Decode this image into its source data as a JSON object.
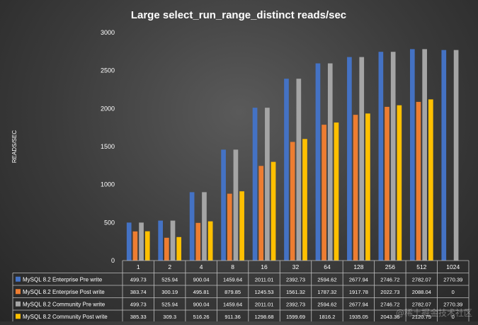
{
  "chart_data": {
    "type": "bar",
    "title": "Large select_run_range_distinct   reads/sec",
    "ylabel": "READS/SEC",
    "xlabel": "",
    "ylim": [
      0,
      3000
    ],
    "yticks": [
      0,
      500,
      1000,
      1500,
      2000,
      2500,
      3000
    ],
    "grid": false,
    "legend": "table-below",
    "categories": [
      "1",
      "2",
      "4",
      "8",
      "16",
      "32",
      "64",
      "128",
      "256",
      "512",
      "1024"
    ],
    "series": [
      {
        "name": "MySQL 8.2 Enterprise Pre write",
        "color": "#4472C4",
        "values": [
          499.73,
          525.94,
          900.04,
          1459.64,
          2011.01,
          2392.73,
          2594.62,
          2677.94,
          2746.72,
          2782.07,
          2770.39
        ],
        "labels": [
          "499.73",
          "525.94",
          "900.04",
          "1459.64",
          "2011.01",
          "2392.73",
          "2594.62",
          "2677.94",
          "2746.72",
          "2782.07",
          "2770.39"
        ]
      },
      {
        "name": "MySQL 8.2 Enterprise Post write",
        "color": "#ED7D31",
        "values": [
          383.74,
          300.19,
          495.81,
          879.85,
          1245.53,
          1561.32,
          1787.32,
          1917.78,
          2022.73,
          2088.04,
          0
        ],
        "labels": [
          "383.74",
          "300.19",
          "495.81",
          "879.85",
          "1245.53",
          "1561.32",
          "1787.32",
          "1917.78",
          "2022.73",
          "2088.04",
          "0"
        ]
      },
      {
        "name": "MySQL 8.2 Community Pre write",
        "color": "#A5A5A5",
        "values": [
          499.73,
          525.94,
          900.04,
          1459.64,
          2011.01,
          2392.73,
          2594.62,
          2677.94,
          2746.72,
          2782.07,
          2770.39
        ],
        "labels": [
          "499.73",
          "525.94",
          "900.04",
          "1459.64",
          "2011.01",
          "2392.73",
          "2594.62",
          "2677.94",
          "2746.72",
          "2782.07",
          "2770.39"
        ]
      },
      {
        "name": "MySQL 8.2 Community Post write",
        "color": "#FFC000",
        "values": [
          385.33,
          309.3,
          516.26,
          911.36,
          1298.68,
          1599.69,
          1816.2,
          1935.05,
          2043.36,
          2120.75,
          0
        ],
        "labels": [
          "385.33",
          "309.3",
          "516.26",
          "911.36",
          "1298.68",
          "1599.69",
          "1816.2",
          "1935.05",
          "2043.36",
          "2120.75",
          "0"
        ]
      }
    ]
  },
  "watermark": "@稀土掘金技术社区"
}
